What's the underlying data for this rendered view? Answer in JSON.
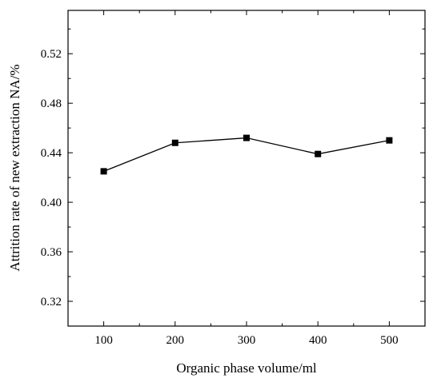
{
  "chart_data": {
    "type": "line",
    "title": "",
    "xlabel": "Organic phase volume/ml",
    "ylabel": "Attrition rate of new extraction NA/%",
    "x": [
      100,
      200,
      300,
      400,
      500
    ],
    "series": [
      {
        "values": [
          0.425,
          0.448,
          0.452,
          0.439,
          0.45
        ]
      }
    ],
    "xlim": [
      50,
      550
    ],
    "ylim": [
      0.3,
      0.555
    ],
    "xticks": [
      100,
      200,
      300,
      400,
      500
    ],
    "xtick_labels": [
      "100",
      "200",
      "300",
      "400",
      "500"
    ],
    "yticks": [
      0.32,
      0.36,
      0.4,
      0.44,
      0.48,
      0.52
    ],
    "ytick_labels": [
      "0.32",
      "0.36",
      "0.40",
      "0.44",
      "0.48",
      "0.52"
    ],
    "grid": false,
    "marker": "square",
    "line_color": "#000000"
  }
}
